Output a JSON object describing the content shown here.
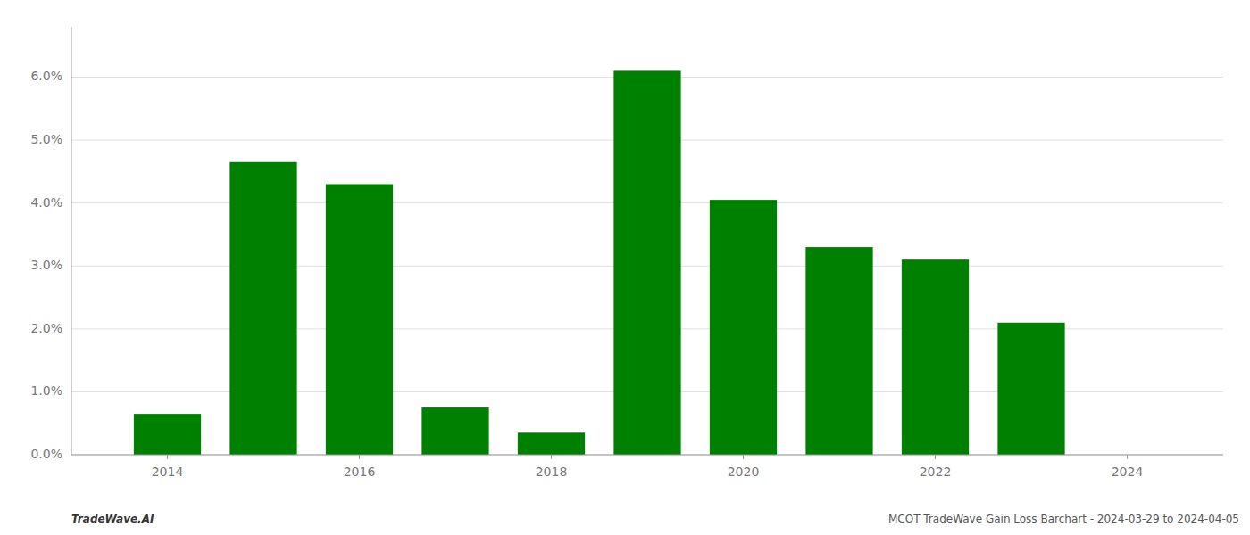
{
  "chart_data": {
    "type": "bar",
    "x": [
      2014,
      2015,
      2016,
      2017,
      2018,
      2019,
      2020,
      2021,
      2022,
      2023,
      2024
    ],
    "values": [
      0.0065,
      0.0465,
      0.043,
      0.0075,
      0.0035,
      0.061,
      0.0405,
      0.033,
      0.031,
      0.021,
      0.0
    ],
    "color": "#008000",
    "xlim": [
      2013.0,
      2025.0
    ],
    "xticks": [
      2014,
      2016,
      2018,
      2020,
      2022,
      2024
    ],
    "ylim": [
      0,
      0.068
    ],
    "yticks": [
      {
        "value": 0.0,
        "label": "0.0%"
      },
      {
        "value": 0.01,
        "label": "1.0%"
      },
      {
        "value": 0.02,
        "label": "2.0%"
      },
      {
        "value": 0.03,
        "label": "3.0%"
      },
      {
        "value": 0.04,
        "label": "4.0%"
      },
      {
        "value": 0.05,
        "label": "5.0%"
      },
      {
        "value": 0.06,
        "label": "6.0%"
      }
    ],
    "grid": true,
    "annotations": [
      "TradeWave.AI",
      "MCOT TradeWave Gain Loss Barchart - 2024-03-29 to 2024-04-05"
    ]
  }
}
